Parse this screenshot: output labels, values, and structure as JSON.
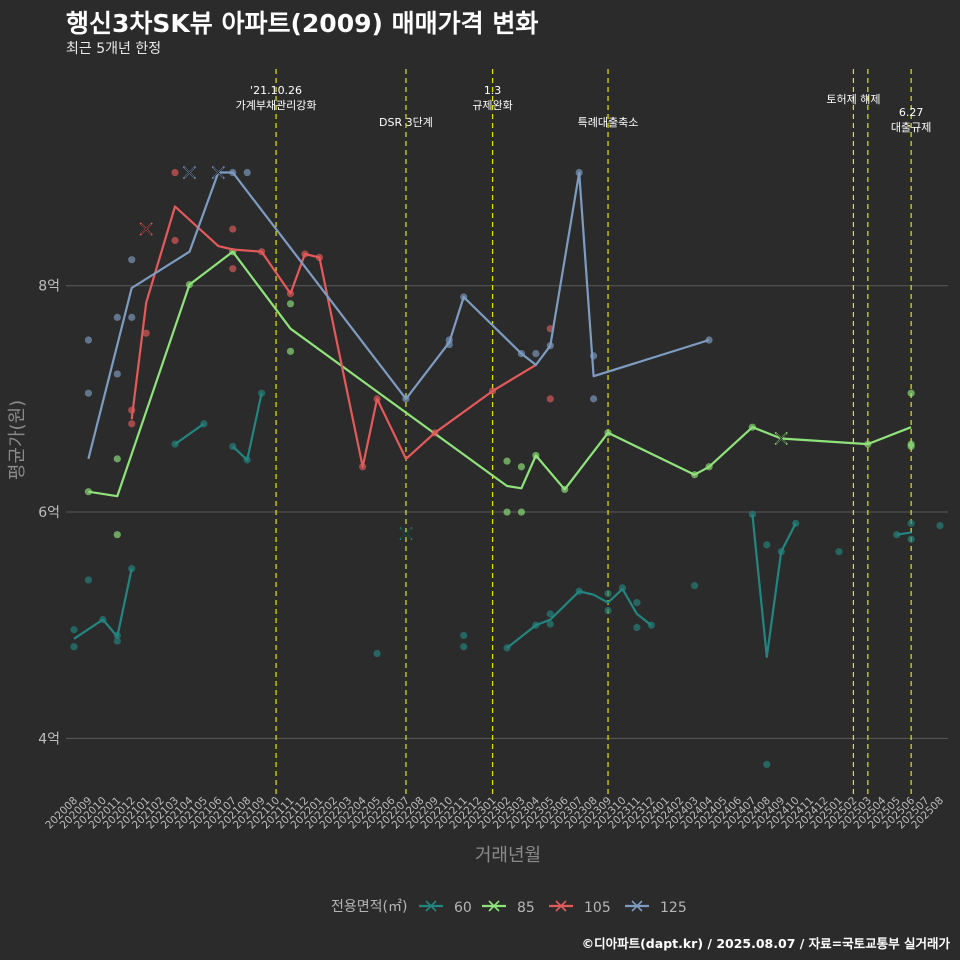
{
  "header": {
    "title": "행신3차SK뷰 아파트(2009) 매매가격 변화",
    "subtitle": "최근 5개년 한정"
  },
  "footer": {
    "caption": "©디아파트(dapt.kr) / 2025.08.07 / 자료=국토교통부 실거래가"
  },
  "colors": {
    "background": "#2b2b2b",
    "grid": "#5a5a5a",
    "event_line": "#e6e600",
    "s60": "#23857f",
    "s85": "#8fe37a",
    "s105": "#e45a5a",
    "s125": "#7e9cc2"
  },
  "chart_data": {
    "type": "line",
    "xlabel": "거래년월",
    "ylabel": "평균가(원)",
    "ylim": [
      3.5,
      9.95
    ],
    "y_ticks": [
      {
        "value": 4,
        "label": "4억"
      },
      {
        "value": 6,
        "label": "6억"
      },
      {
        "value": 8,
        "label": "8억"
      }
    ],
    "x_categories": [
      "202008",
      "202009",
      "202010",
      "202011",
      "202012",
      "202101",
      "202102",
      "202103",
      "202104",
      "202105",
      "202106",
      "202107",
      "202108",
      "202109",
      "202110",
      "202111",
      "202112",
      "202201",
      "202202",
      "202203",
      "202204",
      "202205",
      "202206",
      "202207",
      "202208",
      "202209",
      "202210",
      "202211",
      "202212",
      "202301",
      "202302",
      "202303",
      "202304",
      "202305",
      "202306",
      "202307",
      "202308",
      "202309",
      "202310",
      "202311",
      "202312",
      "202401",
      "202402",
      "202403",
      "202404",
      "202405",
      "202406",
      "202407",
      "202408",
      "202409",
      "202410",
      "202411",
      "202412",
      "202501",
      "202502",
      "202503",
      "202504",
      "202505",
      "202506",
      "202507",
      "202508"
    ],
    "grid": true,
    "legend": {
      "title": "전용면적(㎡)",
      "position": "bottom",
      "entries": [
        "60",
        "85",
        "105",
        "125"
      ]
    },
    "events": [
      {
        "x": 14,
        "label_lines": [
          "'21.10.26",
          "가계부채관리강화"
        ],
        "anchor": "low"
      },
      {
        "x": 23,
        "label_lines": [
          "DSR 3단계"
        ],
        "anchor": "mid"
      },
      {
        "x": 29,
        "label_lines": [
          "1.3",
          "규제완화"
        ],
        "anchor": "low"
      },
      {
        "x": 37,
        "label_lines": [
          "특례대출축소"
        ],
        "anchor": "mid"
      },
      {
        "x": 54,
        "label_lines": [
          "토허제 해제"
        ],
        "anchor": "high"
      },
      {
        "x": 55,
        "label_lines": [],
        "anchor": "high"
      },
      {
        "x": 58,
        "label_lines": [
          "6.27",
          "대출규제"
        ],
        "anchor": "low2"
      }
    ],
    "series": [
      {
        "name": "60",
        "color_key": "s60",
        "lines": [
          [
            [
              0,
              4.88
            ],
            [
              2,
              5.05
            ],
            [
              3,
              4.9
            ],
            [
              4,
              5.5
            ]
          ],
          [
            [
              7,
              6.6
            ],
            [
              9,
              6.78
            ]
          ],
          [
            [
              11,
              6.58
            ],
            [
              12,
              6.46
            ],
            [
              13,
              7.05
            ]
          ],
          [
            [
              30,
              4.8
            ],
            [
              32,
              5.0
            ],
            [
              33,
              5.05
            ],
            [
              35,
              5.3
            ],
            [
              36,
              5.27
            ],
            [
              37,
              5.2
            ],
            [
              38,
              5.32
            ],
            [
              39,
              5.1
            ],
            [
              40,
              5.0
            ]
          ],
          [
            [
              47,
              5.98
            ],
            [
              48,
              4.72
            ],
            [
              49,
              5.65
            ],
            [
              50,
              5.9
            ]
          ],
          [
            [
              57,
              5.8
            ],
            [
              58,
              5.82
            ]
          ]
        ],
        "points": [
          [
            0,
            4.96
          ],
          [
            0,
            4.81
          ],
          [
            2,
            5.05
          ],
          [
            3,
            4.86
          ],
          [
            3,
            4.91
          ],
          [
            4,
            5.5
          ],
          [
            1,
            5.4
          ],
          [
            7,
            6.6
          ],
          [
            9,
            6.78
          ],
          [
            11,
            6.58
          ],
          [
            12,
            6.46
          ],
          [
            13,
            7.05
          ],
          [
            21,
            4.75
          ],
          [
            27,
            4.81
          ],
          [
            27,
            4.91
          ],
          [
            30,
            4.8
          ],
          [
            32,
            5.0
          ],
          [
            33,
            5.01
          ],
          [
            33,
            5.1
          ],
          [
            35,
            5.3
          ],
          [
            37,
            5.28
          ],
          [
            37,
            5.13
          ],
          [
            38,
            5.33
          ],
          [
            39,
            5.2
          ],
          [
            39,
            4.98
          ],
          [
            40,
            5.0
          ],
          [
            43,
            5.35
          ],
          [
            47,
            5.98
          ],
          [
            48,
            5.71
          ],
          [
            48,
            3.77
          ],
          [
            49,
            5.65
          ],
          [
            50,
            5.9
          ],
          [
            53,
            5.65
          ],
          [
            57,
            5.8
          ],
          [
            58,
            5.9
          ],
          [
            58,
            5.76
          ],
          [
            60,
            5.88
          ]
        ],
        "crosses": [
          [
            23,
            5.81
          ]
        ]
      },
      {
        "name": "85",
        "color_key": "s85",
        "lines": [
          [
            [
              1,
              6.18
            ],
            [
              3,
              6.14
            ],
            [
              8,
              8.01
            ],
            [
              11,
              8.3
            ],
            [
              15,
              7.62
            ],
            [
              30,
              6.23
            ],
            [
              31,
              6.21
            ],
            [
              32,
              6.5
            ],
            [
              34,
              6.2
            ],
            [
              37,
              6.7
            ],
            [
              43,
              6.33
            ],
            [
              44,
              6.4
            ],
            [
              47,
              6.75
            ],
            [
              49,
              6.65
            ],
            [
              55,
              6.6
            ],
            [
              58,
              6.75
            ]
          ]
        ],
        "points": [
          [
            1,
            6.18
          ],
          [
            3,
            6.47
          ],
          [
            3,
            5.8
          ],
          [
            8,
            8.01
          ],
          [
            11,
            8.3
          ],
          [
            15,
            7.84
          ],
          [
            15,
            7.42
          ],
          [
            30,
            6.45
          ],
          [
            30,
            6.0
          ],
          [
            31,
            6.4
          ],
          [
            31,
            6.0
          ],
          [
            32,
            6.5
          ],
          [
            34,
            6.2
          ],
          [
            37,
            6.7
          ],
          [
            43,
            6.33
          ],
          [
            44,
            6.4
          ],
          [
            47,
            6.75
          ],
          [
            55,
            6.6
          ],
          [
            58,
            7.05
          ],
          [
            58,
            6.6
          ],
          [
            58,
            6.58
          ]
        ],
        "crosses": [
          [
            49,
            6.65
          ]
        ]
      },
      {
        "name": "105",
        "color_key": "s105",
        "lines": [
          [
            [
              4,
              6.82
            ],
            [
              5,
              7.85
            ],
            [
              7,
              8.7
            ],
            [
              10,
              8.35
            ],
            [
              11,
              8.32
            ],
            [
              13,
              8.3
            ],
            [
              15,
              7.93
            ],
            [
              16,
              8.28
            ],
            [
              17,
              8.25
            ],
            [
              20,
              6.4
            ],
            [
              21,
              7.0
            ],
            [
              23,
              6.47
            ],
            [
              25,
              6.7
            ],
            [
              29,
              7.07
            ],
            [
              32,
              7.3
            ]
          ]
        ],
        "points": [
          [
            4,
            6.9
          ],
          [
            4,
            6.78
          ],
          [
            5,
            7.58
          ],
          [
            7,
            9.0
          ],
          [
            7,
            8.4
          ],
          [
            11,
            8.5
          ],
          [
            11,
            8.15
          ],
          [
            13,
            8.3
          ],
          [
            15,
            7.93
          ],
          [
            16,
            8.28
          ],
          [
            17,
            8.25
          ],
          [
            20,
            6.4
          ],
          [
            21,
            7.0
          ],
          [
            25,
            6.7
          ],
          [
            29,
            7.07
          ],
          [
            33,
            7.62
          ],
          [
            33,
            7.0
          ]
        ],
        "crosses": [
          [
            5,
            8.5
          ]
        ]
      },
      {
        "name": "125",
        "color_key": "s125",
        "lines": [
          [
            [
              1,
              6.47
            ],
            [
              4,
              7.98
            ],
            [
              8,
              8.3
            ],
            [
              10,
              9.0
            ],
            [
              11,
              9.0
            ],
            [
              23,
              7.0
            ],
            [
              26,
              7.5
            ],
            [
              27,
              7.9
            ],
            [
              31,
              7.4
            ],
            [
              32,
              7.3
            ],
            [
              33,
              7.47
            ],
            [
              35,
              9.0
            ],
            [
              36,
              7.2
            ],
            [
              44,
              7.52
            ]
          ]
        ],
        "points": [
          [
            1,
            7.52
          ],
          [
            1,
            7.05
          ],
          [
            3,
            7.22
          ],
          [
            3,
            7.72
          ],
          [
            4,
            7.72
          ],
          [
            4,
            8.23
          ],
          [
            11,
            9.0
          ],
          [
            12,
            9.0
          ],
          [
            23,
            7.0
          ],
          [
            26,
            7.52
          ],
          [
            26,
            7.48
          ],
          [
            27,
            7.9
          ],
          [
            31,
            7.4
          ],
          [
            32,
            7.4
          ],
          [
            33,
            7.47
          ],
          [
            35,
            9.0
          ],
          [
            36,
            7.38
          ],
          [
            36,
            7.0
          ],
          [
            44,
            7.52
          ]
        ],
        "crosses": [
          [
            8,
            9.0
          ],
          [
            10,
            9.0
          ]
        ]
      }
    ]
  }
}
